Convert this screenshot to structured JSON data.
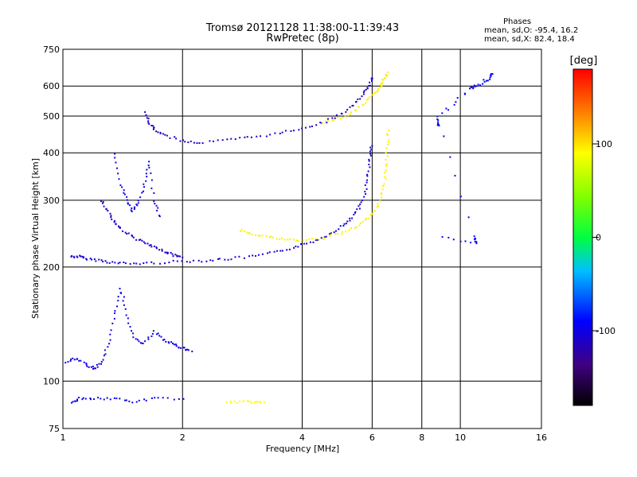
{
  "header": {
    "title_line1": "Tromsø 20121128 11:38:00-11:39:43",
    "title_line2": "RwPretec (8p)",
    "phases_title": "Phases",
    "phases_o": "mean, sd,O: -95.4, 16.2",
    "phases_x": "mean, sd,X:  82.4, 18.4"
  },
  "colorbar": {
    "label": "[deg]",
    "range": [
      -180,
      180
    ],
    "ticks": [
      100,
      0,
      -100
    ],
    "tick_labels": [
      "100",
      "0",
      "-100"
    ]
  },
  "chart_data": {
    "type": "scatter",
    "xlabel": "Frequency [MHz]",
    "ylabel": "Stationary phase Virtual Height [km]",
    "x_scale": "log",
    "y_scale": "log",
    "xlim": [
      1,
      16
    ],
    "ylim": [
      75,
      750
    ],
    "xticks": [
      1,
      2,
      4,
      6,
      8,
      10,
      16
    ],
    "xtick_labels": [
      "1",
      "2",
      "4",
      "6",
      "8",
      "10",
      "16"
    ],
    "yticks": [
      75,
      100,
      200,
      300,
      400,
      500,
      600,
      750
    ],
    "ytick_labels": [
      "75",
      "100",
      "200",
      "300",
      "400",
      "500",
      "600",
      "750"
    ],
    "grid": true,
    "traces": [
      {
        "name": "",
        "phase_deg": -105,
        "points": [
          [
            1.05,
            213
          ],
          [
            1.1,
            213
          ],
          [
            1.15,
            210
          ],
          [
            1.25,
            208
          ],
          [
            1.35,
            205
          ],
          [
            1.5,
            204
          ],
          [
            1.7,
            205
          ],
          [
            2.0,
            207
          ],
          [
            2.3,
            208
          ],
          [
            2.6,
            210
          ],
          [
            3.0,
            213
          ],
          [
            3.4,
            218
          ],
          [
            3.8,
            225
          ],
          [
            4.2,
            232
          ],
          [
            4.6,
            242
          ],
          [
            5.0,
            255
          ],
          [
            5.3,
            268
          ],
          [
            5.55,
            285
          ],
          [
            5.75,
            310
          ],
          [
            5.85,
            345
          ],
          [
            5.92,
            385
          ],
          [
            5.97,
            420
          ]
        ]
      },
      {
        "name": "",
        "phase_deg": -110,
        "points": [
          [
            1.25,
            300
          ],
          [
            1.3,
            280
          ],
          [
            1.35,
            262
          ],
          [
            1.4,
            252
          ],
          [
            1.5,
            240
          ],
          [
            1.6,
            232
          ],
          [
            1.7,
            225
          ],
          [
            1.8,
            220
          ],
          [
            1.9,
            215
          ],
          [
            2.0,
            212
          ]
        ]
      },
      {
        "name": "",
        "phase_deg": -100,
        "points": [
          [
            1.35,
            400
          ],
          [
            1.4,
            330
          ],
          [
            1.45,
            300
          ],
          [
            1.5,
            280
          ],
          [
            1.55,
            295
          ],
          [
            1.6,
            330
          ],
          [
            1.65,
            380
          ],
          [
            1.7,
            300
          ],
          [
            1.75,
            270
          ]
        ]
      },
      {
        "name": "",
        "phase_deg": -110,
        "points": [
          [
            1.62,
            510
          ],
          [
            1.65,
            480
          ],
          [
            1.7,
            460
          ],
          [
            1.8,
            445
          ],
          [
            2.0,
            430
          ],
          [
            2.2,
            425
          ],
          [
            2.6,
            432
          ],
          [
            3.0,
            440
          ],
          [
            3.5,
            450
          ],
          [
            4.0,
            465
          ],
          [
            4.5,
            480
          ],
          [
            5.0,
            505
          ],
          [
            5.4,
            535
          ],
          [
            5.7,
            570
          ],
          [
            5.9,
            600
          ],
          [
            6.0,
            630
          ]
        ]
      },
      {
        "name": "",
        "phase_deg": 95,
        "points": [
          [
            2.8,
            250
          ],
          [
            3.0,
            245
          ],
          [
            3.3,
            240
          ],
          [
            3.6,
            236
          ],
          [
            4.0,
            235
          ],
          [
            4.5,
            238
          ],
          [
            5.0,
            245
          ],
          [
            5.5,
            255
          ],
          [
            5.9,
            270
          ],
          [
            6.2,
            290
          ],
          [
            6.4,
            320
          ],
          [
            6.5,
            360
          ],
          [
            6.55,
            410
          ],
          [
            6.58,
            460
          ]
        ]
      },
      {
        "name": "",
        "phase_deg": 95,
        "points": [
          [
            4.5,
            480
          ],
          [
            5.0,
            495
          ],
          [
            5.4,
            515
          ],
          [
            5.8,
            545
          ],
          [
            6.1,
            575
          ],
          [
            6.3,
            600
          ],
          [
            6.45,
            630
          ],
          [
            6.55,
            650
          ]
        ]
      },
      {
        "name": "",
        "phase_deg": -100,
        "points": [
          [
            1.02,
            112
          ],
          [
            1.08,
            115
          ],
          [
            1.15,
            110
          ],
          [
            1.2,
            108
          ],
          [
            1.25,
            112
          ],
          [
            1.3,
            125
          ],
          [
            1.35,
            150
          ],
          [
            1.4,
            175
          ],
          [
            1.45,
            150
          ],
          [
            1.5,
            130
          ],
          [
            1.6,
            125
          ],
          [
            1.7,
            135
          ],
          [
            1.8,
            128
          ],
          [
            1.9,
            125
          ],
          [
            2.0,
            122
          ],
          [
            2.1,
            120
          ]
        ]
      },
      {
        "name": "",
        "phase_deg": -95,
        "points": [
          [
            1.05,
            88
          ],
          [
            1.1,
            90
          ],
          [
            1.2,
            90
          ],
          [
            1.35,
            90
          ],
          [
            1.5,
            88
          ],
          [
            1.7,
            90
          ],
          [
            2.0,
            90
          ]
        ]
      },
      {
        "name": "",
        "phase_deg": 90,
        "points": [
          [
            2.6,
            88
          ],
          [
            2.8,
            88
          ],
          [
            3.0,
            88
          ],
          [
            3.2,
            88
          ]
        ]
      },
      {
        "name": "",
        "phase_deg": -90,
        "points": [
          [
            8.8,
            470
          ],
          [
            8.8,
            490
          ],
          [
            10.5,
            590
          ],
          [
            11.0,
            600
          ],
          [
            11.8,
            620
          ],
          [
            12.0,
            650
          ],
          [
            8.8,
            500
          ],
          [
            10.8,
            240
          ],
          [
            11.0,
            230
          ],
          [
            9.0,
            240
          ]
        ]
      }
    ]
  }
}
